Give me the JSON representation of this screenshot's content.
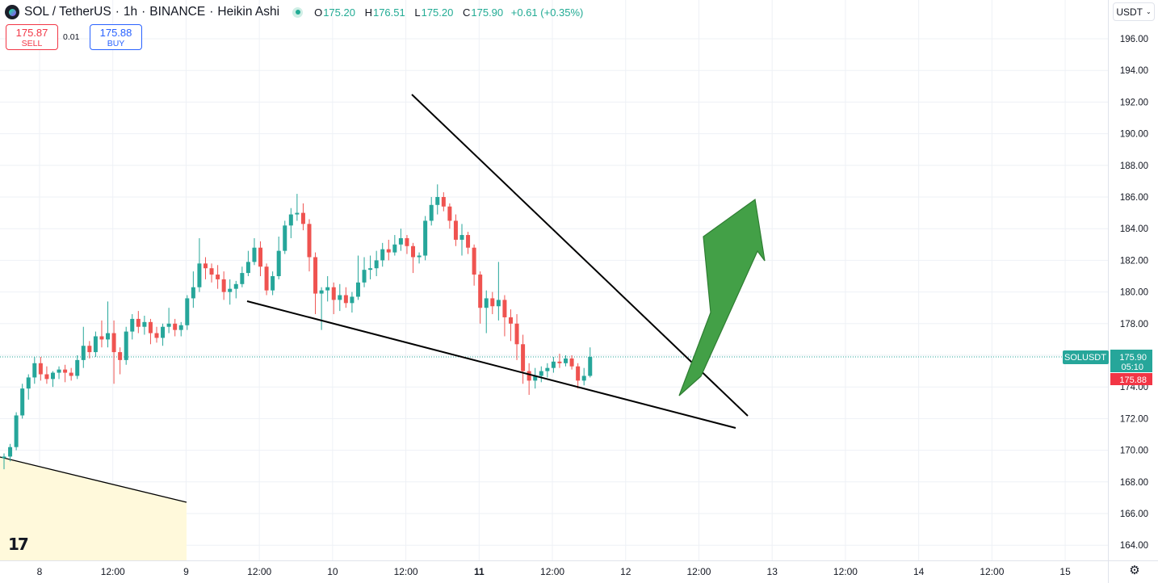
{
  "header": {
    "symbol": "SOL / TetherUS",
    "interval": "1h",
    "exchange": "BINANCE",
    "chart_style": "Heikin Ashi",
    "open_label": "O",
    "open": "175.20",
    "high_label": "H",
    "high": "176.51",
    "low_label": "L",
    "low": "175.20",
    "close_label": "C",
    "close": "175.90",
    "change": "+0.61 (+0.35%)"
  },
  "trade": {
    "sell_price": "175.87",
    "sell_label": "SELL",
    "spread": "0.01",
    "buy_price": "175.88",
    "buy_label": "BUY"
  },
  "currency": "USDT",
  "currency_caret": "⌄",
  "price_tag": {
    "symbol": "SOLUSDT",
    "last": "175.90",
    "countdown": "05:10",
    "bid": "175.88"
  },
  "colors": {
    "up": "#26a69a",
    "down": "#ef5350",
    "grid": "#eef1f6",
    "drawing": "#000000",
    "arrow": "#43a047",
    "zone": "#fff9db"
  },
  "chart_data": {
    "type": "candlestick",
    "style": "Heikin Ashi",
    "ylim": [
      163,
      197
    ],
    "y_ticks": [
      164,
      166,
      168,
      170,
      172,
      174,
      176,
      178,
      180,
      182,
      184,
      186,
      188,
      190,
      192,
      194,
      196
    ],
    "x_ticks": [
      {
        "label": "8",
        "t": 0,
        "bold": false
      },
      {
        "label": "12:00",
        "t": 12,
        "bold": false
      },
      {
        "label": "9",
        "t": 24,
        "bold": false
      },
      {
        "label": "12:00",
        "t": 36,
        "bold": false
      },
      {
        "label": "10",
        "t": 48,
        "bold": false
      },
      {
        "label": "12:00",
        "t": 60,
        "bold": false
      },
      {
        "label": "11",
        "t": 72,
        "bold": true
      },
      {
        "label": "12:00",
        "t": 84,
        "bold": false
      },
      {
        "label": "12",
        "t": 96,
        "bold": false
      },
      {
        "label": "12:00",
        "t": 108,
        "bold": false
      },
      {
        "label": "13",
        "t": 120,
        "bold": false
      },
      {
        "label": "12:00",
        "t": 132,
        "bold": false
      },
      {
        "label": "14",
        "t": 144,
        "bold": false
      },
      {
        "label": "12:00",
        "t": 156,
        "bold": false
      },
      {
        "label": "15",
        "t": 168,
        "bold": false
      }
    ],
    "last_price": 175.9,
    "candles": [
      [
        169.5,
        169.8,
        168.8,
        169.6
      ],
      [
        169.6,
        170.4,
        169.3,
        170.2
      ],
      [
        170.2,
        172.4,
        170.0,
        172.2
      ],
      [
        172.2,
        174.2,
        172.0,
        173.9
      ],
      [
        173.9,
        174.8,
        173.2,
        174.6
      ],
      [
        174.6,
        175.9,
        174.2,
        175.5
      ],
      [
        175.5,
        175.9,
        174.4,
        174.8
      ],
      [
        174.8,
        175.3,
        174.2,
        174.5
      ],
      [
        174.5,
        175.0,
        174.0,
        174.9
      ],
      [
        174.9,
        175.3,
        174.5,
        175.1
      ],
      [
        175.1,
        175.4,
        174.3,
        174.9
      ],
      [
        174.9,
        175.2,
        174.4,
        174.7
      ],
      [
        174.7,
        176.0,
        174.5,
        175.7
      ],
      [
        175.7,
        177.8,
        175.2,
        176.6
      ],
      [
        176.6,
        176.9,
        175.8,
        176.2
      ],
      [
        176.2,
        177.5,
        175.9,
        177.2
      ],
      [
        177.2,
        178.2,
        176.5,
        177.0
      ],
      [
        177.0,
        179.4,
        176.5,
        177.4
      ],
      [
        177.4,
        178.2,
        174.2,
        176.2
      ],
      [
        176.2,
        176.5,
        174.8,
        175.7
      ],
      [
        175.7,
        177.8,
        175.4,
        177.5
      ],
      [
        177.5,
        178.6,
        177.0,
        178.3
      ],
      [
        178.3,
        178.8,
        177.4,
        177.8
      ],
      [
        177.8,
        178.5,
        177.3,
        178.1
      ],
      [
        178.1,
        178.3,
        176.7,
        177.4
      ],
      [
        177.4,
        177.8,
        176.8,
        177.1
      ],
      [
        177.1,
        178.0,
        176.6,
        177.8
      ],
      [
        177.8,
        179.0,
        177.4,
        178.0
      ],
      [
        178.0,
        178.3,
        177.2,
        177.6
      ],
      [
        177.6,
        178.1,
        177.2,
        177.9
      ],
      [
        177.9,
        179.8,
        177.6,
        179.6
      ],
      [
        179.6,
        181.3,
        179.0,
        180.3
      ],
      [
        180.3,
        183.4,
        180.0,
        181.8
      ],
      [
        181.8,
        182.2,
        180.8,
        181.5
      ],
      [
        181.5,
        181.8,
        180.6,
        181.1
      ],
      [
        181.1,
        181.7,
        180.2,
        180.8
      ],
      [
        180.8,
        181.3,
        179.5,
        180.0
      ],
      [
        180.0,
        180.8,
        179.2,
        180.2
      ],
      [
        180.2,
        180.7,
        179.6,
        180.5
      ],
      [
        180.5,
        181.6,
        180.3,
        181.2
      ],
      [
        181.2,
        182.6,
        181.0,
        181.9
      ],
      [
        181.9,
        183.4,
        181.7,
        182.8
      ],
      [
        182.8,
        183.2,
        181.0,
        181.6
      ],
      [
        181.6,
        181.8,
        179.8,
        180.1
      ],
      [
        180.1,
        181.3,
        179.8,
        181.0
      ],
      [
        181.0,
        183.5,
        180.8,
        182.6
      ],
      [
        182.6,
        184.5,
        182.4,
        184.2
      ],
      [
        184.2,
        185.3,
        183.4,
        184.9
      ],
      [
        184.9,
        186.2,
        184.5,
        185.0
      ],
      [
        185.0,
        185.6,
        183.9,
        184.3
      ],
      [
        184.3,
        184.6,
        181.3,
        182.2
      ],
      [
        182.2,
        182.5,
        178.6,
        179.9
      ],
      [
        179.9,
        180.3,
        177.6,
        180.1
      ],
      [
        180.1,
        181.0,
        179.4,
        180.3
      ],
      [
        180.3,
        180.6,
        178.6,
        179.5
      ],
      [
        179.5,
        180.5,
        178.8,
        179.8
      ],
      [
        179.8,
        180.3,
        179.0,
        179.3
      ],
      [
        179.3,
        180.0,
        178.7,
        179.7
      ],
      [
        179.7,
        182.3,
        179.5,
        180.6
      ],
      [
        180.6,
        182.2,
        180.3,
        181.4
      ],
      [
        181.4,
        182.3,
        180.8,
        181.5
      ],
      [
        181.5,
        182.6,
        181.0,
        182.0
      ],
      [
        182.0,
        183.1,
        181.6,
        182.7
      ],
      [
        182.7,
        183.3,
        182.0,
        182.5
      ],
      [
        182.5,
        183.6,
        182.3,
        183.0
      ],
      [
        183.0,
        184.0,
        182.6,
        183.4
      ],
      [
        183.4,
        183.6,
        182.4,
        182.9
      ],
      [
        182.9,
        183.1,
        181.2,
        182.2
      ],
      [
        182.2,
        182.5,
        181.8,
        182.3
      ],
      [
        182.3,
        184.8,
        182.0,
        184.5
      ],
      [
        184.5,
        186.0,
        184.2,
        185.5
      ],
      [
        185.5,
        186.8,
        184.9,
        186.0
      ],
      [
        186.0,
        186.3,
        185.1,
        185.4
      ],
      [
        185.4,
        185.6,
        184.0,
        184.5
      ],
      [
        184.5,
        184.9,
        182.9,
        183.3
      ],
      [
        183.3,
        184.3,
        182.3,
        183.6
      ],
      [
        183.6,
        183.8,
        182.4,
        182.8
      ],
      [
        182.8,
        183.0,
        180.4,
        181.1
      ],
      [
        181.1,
        181.3,
        178.0,
        179.0
      ],
      [
        179.0,
        180.1,
        177.4,
        179.6
      ],
      [
        179.6,
        180.0,
        178.6,
        179.1
      ],
      [
        179.1,
        181.9,
        178.2,
        179.5
      ],
      [
        179.5,
        179.8,
        177.2,
        178.4
      ],
      [
        178.4,
        178.9,
        176.9,
        178.0
      ],
      [
        178.0,
        178.6,
        175.7,
        176.7
      ],
      [
        176.7,
        177.3,
        174.2,
        175.0
      ],
      [
        175.0,
        175.5,
        173.5,
        174.4
      ],
      [
        174.4,
        175.2,
        173.9,
        174.7
      ],
      [
        174.7,
        175.3,
        174.3,
        175.0
      ],
      [
        175.0,
        175.5,
        174.6,
        175.2
      ],
      [
        175.2,
        175.9,
        174.9,
        175.6
      ],
      [
        175.6,
        176.1,
        175.2,
        175.5
      ],
      [
        175.5,
        176.0,
        175.3,
        175.8
      ],
      [
        175.8,
        176.0,
        175.1,
        175.3
      ],
      [
        175.3,
        175.5,
        173.9,
        174.4
      ],
      [
        174.4,
        175.2,
        174.1,
        174.7
      ],
      [
        174.7,
        176.5,
        174.6,
        175.9
      ]
    ]
  }
}
